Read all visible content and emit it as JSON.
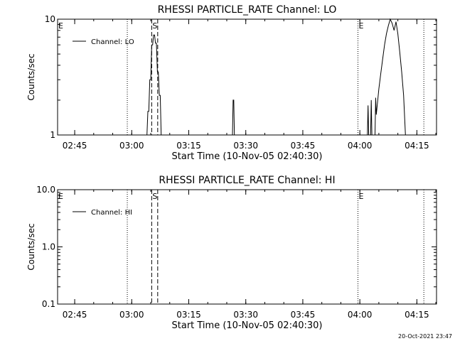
{
  "footer_timestamp": "20-Oct-2021 23:47",
  "chart_data": [
    {
      "type": "line",
      "title": "RHESSI PARTICLE_RATE Channel: LO",
      "xlabel": "Start Time (10-Nov-05 02:40:30)",
      "ylabel": "Counts/sec",
      "y_scale": "log",
      "ylim": [
        1,
        10
      ],
      "xlim": [
        "02:40:30",
        "04:20:10"
      ],
      "x_ticks": [
        "02:45",
        "03:00",
        "03:15",
        "03:30",
        "03:45",
        "04:00",
        "04:15"
      ],
      "y_ticks": [
        "1",
        "10"
      ],
      "legend": {
        "position": "top-left",
        "entries": [
          "Channel: LO"
        ]
      },
      "series": [
        {
          "name": "Channel: LO",
          "points": [
            [
              "03:04:00",
              1
            ],
            [
              "03:04:15",
              1.6
            ],
            [
              "03:04:30",
              1.6
            ],
            [
              "03:04:45",
              3.0
            ],
            [
              "03:05:00",
              3.0
            ],
            [
              "03:05:15",
              6.0
            ],
            [
              "03:05:30",
              6.0
            ],
            [
              "03:05:45",
              7.3
            ],
            [
              "03:06:00",
              7.3
            ],
            [
              "03:06:15",
              6.2
            ],
            [
              "03:06:30",
              6.2
            ],
            [
              "03:06:45",
              3.5
            ],
            [
              "03:07:00",
              3.5
            ],
            [
              "03:07:15",
              2.2
            ],
            [
              "03:07:30",
              2.2
            ],
            [
              "03:07:45",
              1
            ],
            [
              "03:26:30",
              1
            ],
            [
              "03:26:40",
              2.0
            ],
            [
              "03:26:50",
              2.0
            ],
            [
              "03:27:00",
              1
            ],
            [
              "04:02:00",
              1
            ],
            [
              "04:02:10",
              1.8
            ],
            [
              "04:02:20",
              1
            ],
            [
              "04:02:50",
              1
            ],
            [
              "04:03:00",
              2.0
            ],
            [
              "04:03:10",
              1
            ],
            [
              "04:04:00",
              1
            ],
            [
              "04:04:10",
              2.1
            ],
            [
              "04:04:20",
              1.5
            ],
            [
              "04:05:00",
              2.5
            ],
            [
              "04:05:30",
              3.4
            ],
            [
              "04:06:00",
              4.5
            ],
            [
              "04:06:30",
              6.0
            ],
            [
              "04:07:00",
              7.5
            ],
            [
              "04:07:30",
              8.8
            ],
            [
              "04:08:00",
              10.3
            ],
            [
              "04:08:30",
              9.2
            ],
            [
              "04:09:00",
              8.0
            ],
            [
              "04:09:30",
              9.5
            ],
            [
              "04:10:00",
              7.5
            ],
            [
              "04:10:30",
              5.2
            ],
            [
              "04:11:00",
              3.5
            ],
            [
              "04:11:30",
              2.2
            ],
            [
              "04:12:00",
              1
            ]
          ]
        }
      ],
      "markers": [
        {
          "label": "E",
          "time": "02:40:30",
          "style": "dotted"
        },
        {
          "label": "",
          "time": "02:58:50",
          "style": "dotted"
        },
        {
          "label": "S",
          "time": "03:05:15",
          "style": "dashed"
        },
        {
          "label": "",
          "time": "03:06:50",
          "style": "dashed"
        },
        {
          "label": "E",
          "time": "03:59:30",
          "style": "dotted"
        },
        {
          "label": "",
          "time": "04:16:50",
          "style": "dotted"
        }
      ]
    },
    {
      "type": "line",
      "title": "RHESSI PARTICLE_RATE Channel: HI",
      "xlabel": "Start Time (10-Nov-05 02:40:30)",
      "ylabel": "Counts/sec",
      "y_scale": "log",
      "ylim": [
        0.1,
        10
      ],
      "xlim": [
        "02:40:30",
        "04:20:10"
      ],
      "x_ticks": [
        "02:45",
        "03:00",
        "03:15",
        "03:30",
        "03:45",
        "04:00",
        "04:15"
      ],
      "y_ticks": [
        "0.1",
        "1.0",
        "10.0"
      ],
      "legend": {
        "position": "top-left",
        "entries": [
          "Channel: HI"
        ]
      },
      "series": [
        {
          "name": "Channel: HI",
          "points": []
        }
      ],
      "markers": [
        {
          "label": "E",
          "time": "02:40:30",
          "style": "dotted"
        },
        {
          "label": "",
          "time": "02:58:50",
          "style": "dotted"
        },
        {
          "label": "S",
          "time": "03:05:15",
          "style": "dashed"
        },
        {
          "label": "",
          "time": "03:06:50",
          "style": "dashed"
        },
        {
          "label": "E",
          "time": "03:59:30",
          "style": "dotted"
        },
        {
          "label": "",
          "time": "04:16:50",
          "style": "dotted"
        }
      ]
    }
  ]
}
